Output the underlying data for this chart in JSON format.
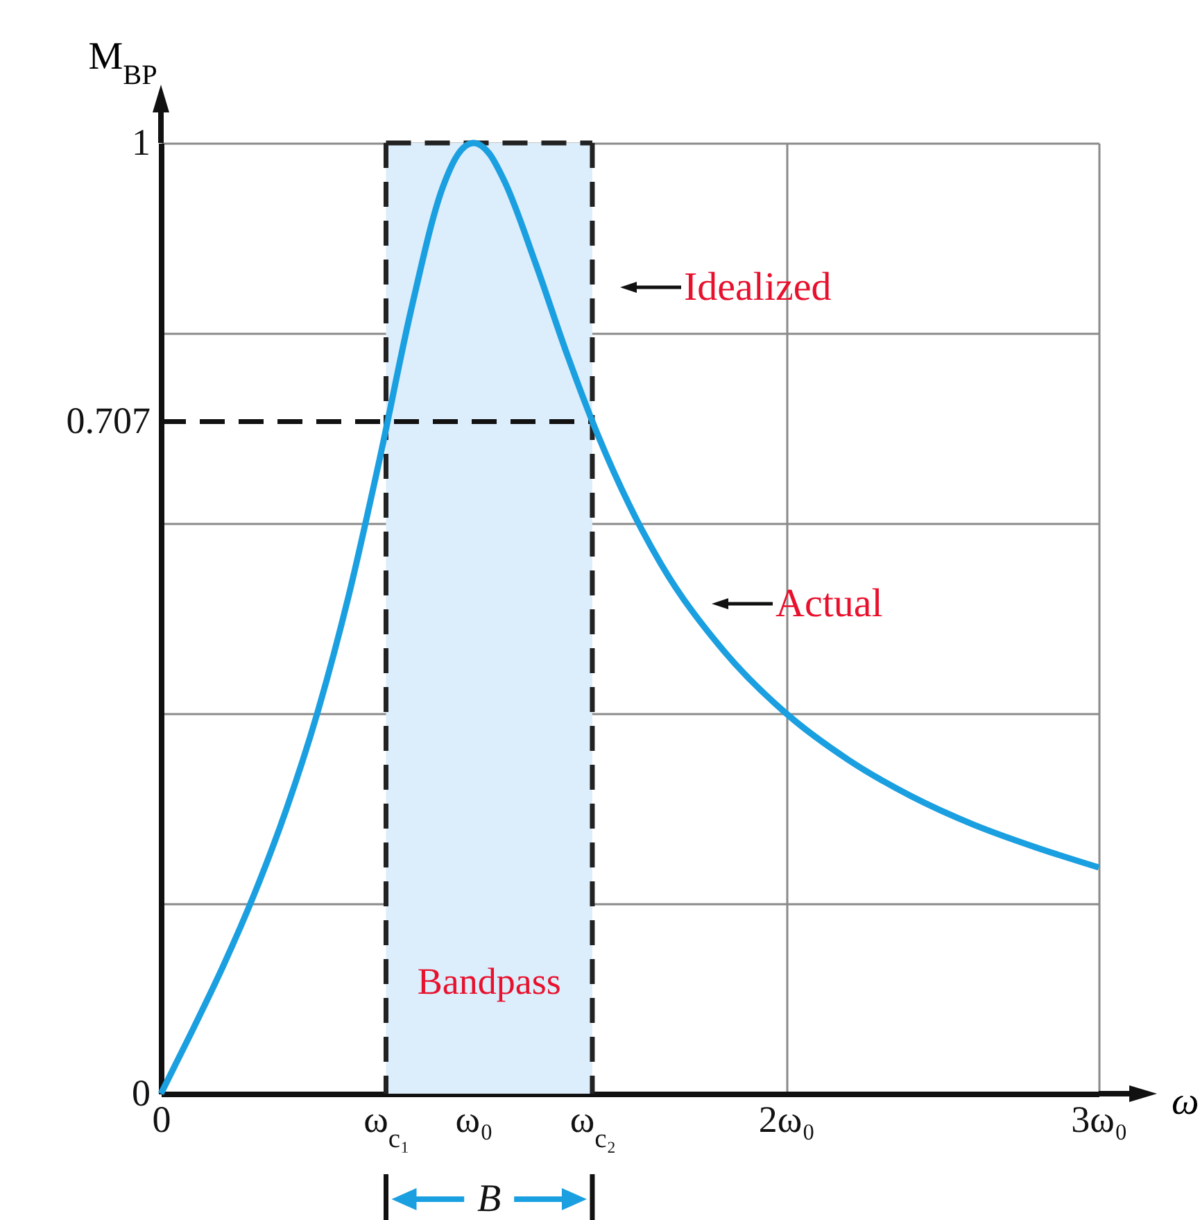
{
  "chart_data": {
    "type": "line",
    "xlabel": "ω",
    "ylabel": "M$_{BP}$",
    "xlim": [
      0,
      3
    ],
    "ylim": [
      0,
      1
    ],
    "xticks": [
      0,
      {
        "value": 0.72,
        "label": "ω$_{c₁}$"
      },
      {
        "value": 1,
        "label": "ω₀"
      },
      {
        "value": 1.38,
        "label": "ω$_{c₂}$"
      },
      {
        "value": 2,
        "label": "2ω₀"
      },
      {
        "value": 3,
        "label": "3ω₀"
      }
    ],
    "yticks": [
      0,
      {
        "value": 0.2,
        "label": null
      },
      {
        "value": 0.4,
        "label": null
      },
      {
        "value": 0.6,
        "label": null
      },
      0.707,
      {
        "value": 0.8,
        "label": null
      },
      1
    ],
    "grid": true,
    "series": [
      {
        "color": "#1a9fe0",
        "line_style": "solid",
        "x": [
          0,
          0.05,
          0.1,
          0.15,
          0.2,
          0.3,
          0.4,
          0.5,
          0.6,
          0.7,
          0.8,
          0.9,
          0.95,
          1,
          1.05,
          1.1,
          1.2,
          1.3,
          1.4,
          1.5,
          1.6,
          1.8,
          2,
          2.2,
          2.4,
          2.6,
          2.8,
          3
        ],
        "values": [
          0,
          0.033,
          0.066,
          0.1,
          0.135,
          0.211,
          0.298,
          0.4,
          0.523,
          0.668,
          0.824,
          0.952,
          0.988,
          1,
          0.989,
          0.959,
          0.872,
          0.777,
          0.691,
          0.618,
          0.557,
          0.466,
          0.4,
          0.351,
          0.313,
          0.283,
          0.259,
          0.238
        ]
      },
      {
        "color": "#222222",
        "line_style": "dashed",
        "x": [
          0.72,
          1.38
        ],
        "values": [
          1,
          1
        ]
      },
      {
        "color": "#111111",
        "line_style": "dashed",
        "x": [
          0,
          1.38
        ],
        "values": [
          0.707,
          0.707
        ]
      }
    ],
    "ref_lines": [
      {
        "axis": "x",
        "value": 0.72,
        "color": "#222222",
        "line_style": "dashed"
      },
      {
        "axis": "x",
        "value": 1.38,
        "color": "#222222",
        "line_style": "dashed"
      }
    ],
    "bands": [
      {
        "axis": "x",
        "from": 0.72,
        "to": 1.38,
        "label": "Bandpass",
        "color": "#dcedfb"
      }
    ],
    "annotations": [
      "Idealized",
      "Actual",
      "B"
    ]
  }
}
